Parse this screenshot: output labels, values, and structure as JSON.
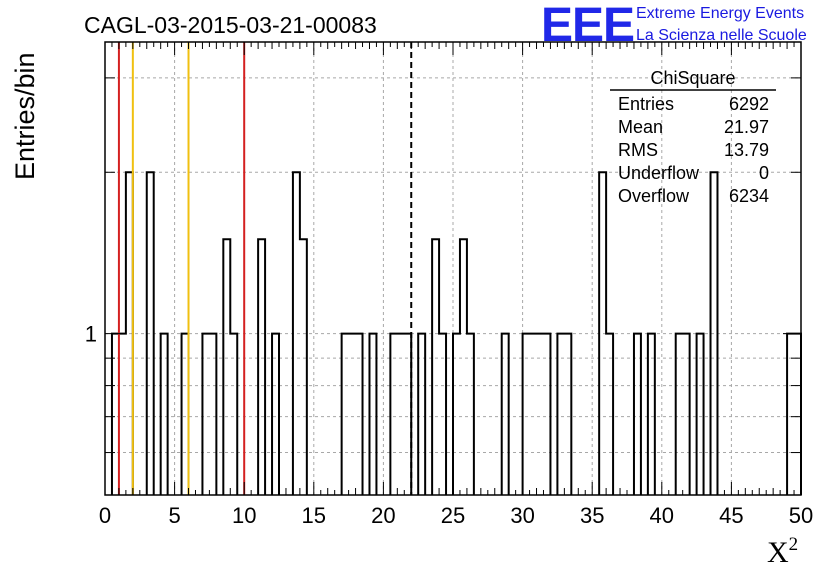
{
  "title": "CAGL-03-2015-03-21-00083",
  "logo": {
    "mark": "EEE",
    "line1": "Extreme Energy Events",
    "line2": "La Scienza nelle Scuole",
    "color": "#2028e8"
  },
  "stats": {
    "name": "ChiSquare",
    "rows": [
      {
        "label": "Entries",
        "value": "6292"
      },
      {
        "label": "Mean",
        "value": "21.97"
      },
      {
        "label": "RMS",
        "value": "13.79"
      },
      {
        "label": "Underflow",
        "value": "0"
      },
      {
        "label": "Overflow",
        "value": "6234"
      }
    ]
  },
  "chart_data": {
    "type": "bar",
    "title": "CAGL-03-2015-03-21-00083",
    "xlabel": "X",
    "xlabel_sup": "2",
    "ylabel": "Entries/bin",
    "xlim": [
      0,
      50
    ],
    "ylim": [
      0.5,
      3.5
    ],
    "yscale": "log",
    "grid": true,
    "bin_width": 0.5,
    "xticks": [
      "0",
      "5",
      "10",
      "15",
      "20",
      "25",
      "30",
      "35",
      "40",
      "45",
      "50"
    ],
    "yticks": [
      "1"
    ],
    "bins": [
      {
        "x": 0.5,
        "y": 1
      },
      {
        "x": 1.0,
        "y": 1
      },
      {
        "x": 1.5,
        "y": 2
      },
      {
        "x": 3.0,
        "y": 2
      },
      {
        "x": 4.0,
        "y": 1
      },
      {
        "x": 5.5,
        "y": 1
      },
      {
        "x": 7.0,
        "y": 1
      },
      {
        "x": 7.5,
        "y": 1
      },
      {
        "x": 8.5,
        "y": 1.5
      },
      {
        "x": 9.0,
        "y": 1
      },
      {
        "x": 11.0,
        "y": 1.5
      },
      {
        "x": 12.0,
        "y": 1
      },
      {
        "x": 13.5,
        "y": 2
      },
      {
        "x": 14.0,
        "y": 1.5
      },
      {
        "x": 17.0,
        "y": 1
      },
      {
        "x": 17.5,
        "y": 1
      },
      {
        "x": 18.0,
        "y": 1
      },
      {
        "x": 19.0,
        "y": 1
      },
      {
        "x": 20.5,
        "y": 1
      },
      {
        "x": 21.0,
        "y": 1
      },
      {
        "x": 21.5,
        "y": 1
      },
      {
        "x": 22.5,
        "y": 1
      },
      {
        "x": 23.5,
        "y": 1.5
      },
      {
        "x": 24.0,
        "y": 1
      },
      {
        "x": 25.0,
        "y": 1
      },
      {
        "x": 25.5,
        "y": 1.5
      },
      {
        "x": 26.0,
        "y": 1
      },
      {
        "x": 28.5,
        "y": 1
      },
      {
        "x": 30.0,
        "y": 1
      },
      {
        "x": 30.5,
        "y": 1
      },
      {
        "x": 31.0,
        "y": 1
      },
      {
        "x": 31.5,
        "y": 1
      },
      {
        "x": 32.5,
        "y": 1
      },
      {
        "x": 33.0,
        "y": 1
      },
      {
        "x": 35.5,
        "y": 2
      },
      {
        "x": 36.0,
        "y": 1
      },
      {
        "x": 38.0,
        "y": 1
      },
      {
        "x": 39.0,
        "y": 1
      },
      {
        "x": 41.0,
        "y": 1
      },
      {
        "x": 41.5,
        "y": 1
      },
      {
        "x": 42.5,
        "y": 1
      },
      {
        "x": 43.5,
        "y": 2
      },
      {
        "x": 49.0,
        "y": 1
      },
      {
        "x": 49.5,
        "y": 1
      }
    ],
    "vlines": [
      {
        "x": 1.0,
        "color": "#d42020",
        "style": "solid"
      },
      {
        "x": 2.0,
        "color": "#f0c010",
        "style": "solid"
      },
      {
        "x": 6.0,
        "color": "#f0c010",
        "style": "solid"
      },
      {
        "x": 10.0,
        "color": "#d42020",
        "style": "solid"
      },
      {
        "x": 22.0,
        "color": "#000000",
        "style": "dashed"
      }
    ]
  }
}
